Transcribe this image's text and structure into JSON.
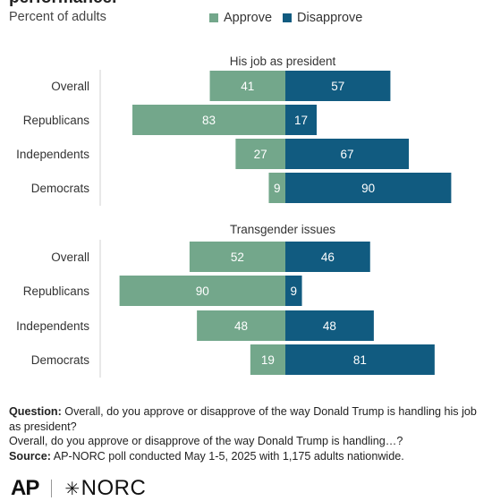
{
  "header": {
    "title": "performance.",
    "subtitle": "Percent of adults"
  },
  "legend": {
    "approve": "Approve",
    "disapprove": "Disapprove"
  },
  "colors": {
    "approve": "#73a78b",
    "disapprove": "#115b80",
    "label_text": "#ffffff"
  },
  "chart_data": [
    {
      "type": "bar",
      "orientation": "horizontal-diverging",
      "title": "His job as president",
      "categories": [
        "Overall",
        "Republicans",
        "Independents",
        "Democrats"
      ],
      "series": [
        {
          "name": "Approve",
          "values": [
            41,
            83,
            27,
            9
          ]
        },
        {
          "name": "Disapprove",
          "values": [
            57,
            17,
            67,
            90
          ]
        }
      ]
    },
    {
      "type": "bar",
      "orientation": "horizontal-diverging",
      "title": "Transgender issues",
      "categories": [
        "Overall",
        "Republicans",
        "Independents",
        "Democrats"
      ],
      "series": [
        {
          "name": "Approve",
          "values": [
            52,
            90,
            48,
            19
          ]
        },
        {
          "name": "Disapprove",
          "values": [
            46,
            9,
            48,
            81
          ]
        }
      ]
    }
  ],
  "notes": {
    "question_label": "Question:",
    "question_text": " Overall, do you approve or disapprove of the way Donald Trump is handling his job as president?",
    "question_text_2": "Overall, do you approve or disapprove of the way Donald Trump is handling…?",
    "source_label": "Source:",
    "source_text": " AP-NORC poll conducted May 1-5, 2025 with 1,175 adults nationwide."
  },
  "logos": {
    "ap": "AP",
    "norc": "NORC"
  }
}
